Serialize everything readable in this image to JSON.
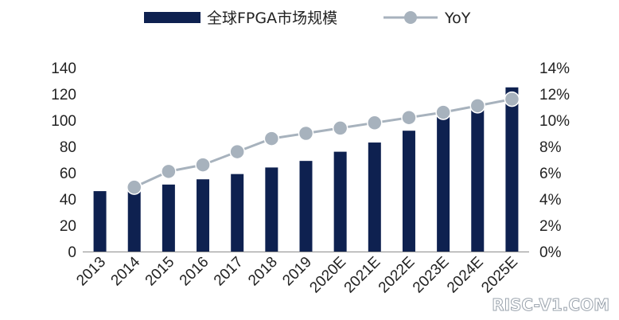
{
  "chart_data": {
    "type": "bar",
    "categories": [
      "2013",
      "2014",
      "2015",
      "2016",
      "2017",
      "2018",
      "2019",
      "2020E",
      "2021E",
      "2022E",
      "2023E",
      "2024E",
      "2025E"
    ],
    "series": [
      {
        "name": "全球FPGA市场规模",
        "type": "bar",
        "axis": "left",
        "color": "#0e2150",
        "values": [
          46,
          49,
          51,
          55,
          59,
          64,
          69,
          76,
          83,
          92,
          104,
          114,
          125
        ]
      },
      {
        "name": "YoY",
        "type": "line",
        "axis": "right",
        "color": "#a7b2bd",
        "values": [
          null,
          4.9,
          6.1,
          6.6,
          7.6,
          8.6,
          9.0,
          9.4,
          9.8,
          10.2,
          10.6,
          11.1,
          11.6
        ]
      }
    ],
    "left_axis": {
      "ylim": [
        0,
        140
      ],
      "ticks": [
        0,
        20,
        40,
        60,
        80,
        100,
        120,
        140
      ]
    },
    "right_axis": {
      "ylim": [
        0,
        14
      ],
      "ticks": [
        "0%",
        "2%",
        "4%",
        "6%",
        "8%",
        "10%",
        "12%",
        "14%"
      ]
    },
    "legend": "top-center",
    "grid": false
  },
  "watermark": "RISC-V1.COM"
}
